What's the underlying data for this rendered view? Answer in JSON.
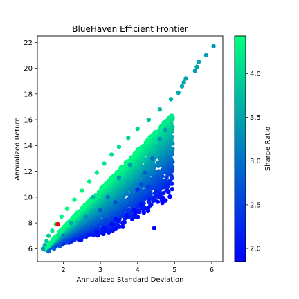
{
  "chart_data": {
    "type": "scatter",
    "title": "BlueHaven Efficient Frontier",
    "xlabel": "Annualized Standard Deviation",
    "ylabel": "Annualized Return",
    "xlim": [
      1.3,
      6.3
    ],
    "ylim": [
      5.0,
      22.5
    ],
    "xticks": [
      2,
      3,
      4,
      5,
      6
    ],
    "yticks": [
      6,
      8,
      10,
      12,
      14,
      16,
      18,
      20,
      22
    ],
    "grid": false,
    "colorbar": {
      "label": "Sharpe Ratio",
      "range": [
        1.85,
        4.43
      ],
      "ticks": [
        2.0,
        2.5,
        3.0,
        3.5,
        4.0
      ],
      "tick_labels": [
        "2.0",
        "2.5",
        "3.0",
        "3.5",
        "4.0"
      ],
      "colormap": "winter",
      "color_low": "#0000ff",
      "color_high": "#00ff80"
    },
    "marker_color_note_free": true,
    "highlight": {
      "x": 1.85,
      "y": 7.9,
      "color": "#ff0000"
    },
    "series": [
      {
        "points": [
          {
            "x": 1.45,
            "y": 6.0,
            "s": 3.4
          },
          {
            "x": 1.5,
            "y": 6.3,
            "s": 3.7
          },
          {
            "x": 1.55,
            "y": 6.6,
            "s": 3.9
          },
          {
            "x": 1.6,
            "y": 7.0,
            "s": 4.0
          },
          {
            "x": 1.7,
            "y": 7.4,
            "s": 4.2
          },
          {
            "x": 1.8,
            "y": 7.9,
            "s": 4.3
          },
          {
            "x": 1.95,
            "y": 8.5,
            "s": 4.35
          },
          {
            "x": 2.1,
            "y": 9.1,
            "s": 4.4
          },
          {
            "x": 2.3,
            "y": 9.8,
            "s": 4.4
          },
          {
            "x": 2.5,
            "y": 10.5,
            "s": 4.35
          },
          {
            "x": 2.7,
            "y": 11.2,
            "s": 4.3
          },
          {
            "x": 2.9,
            "y": 11.9,
            "s": 4.25
          },
          {
            "x": 3.1,
            "y": 12.6,
            "s": 4.2
          },
          {
            "x": 3.3,
            "y": 13.3,
            "s": 4.15
          },
          {
            "x": 3.5,
            "y": 13.9,
            "s": 4.1
          },
          {
            "x": 3.75,
            "y": 14.6,
            "s": 4.0
          },
          {
            "x": 4.0,
            "y": 15.3,
            "s": 3.95
          },
          {
            "x": 4.3,
            "y": 16.0,
            "s": 3.85
          },
          {
            "x": 4.6,
            "y": 16.8,
            "s": 3.75
          },
          {
            "x": 4.9,
            "y": 17.6,
            "s": 3.65
          },
          {
            "x": 5.2,
            "y": 18.6,
            "s": 3.55
          },
          {
            "x": 5.3,
            "y": 19.2,
            "s": 3.5
          },
          {
            "x": 5.25,
            "y": 18.9,
            "s": 3.5
          },
          {
            "x": 5.1,
            "y": 18.1,
            "s": 3.55
          },
          {
            "x": 5.6,
            "y": 20.1,
            "s": 3.5
          },
          {
            "x": 5.65,
            "y": 20.5,
            "s": 3.5
          },
          {
            "x": 5.55,
            "y": 19.8,
            "s": 3.45
          },
          {
            "x": 5.85,
            "y": 21.0,
            "s": 3.45
          },
          {
            "x": 6.05,
            "y": 21.7,
            "s": 3.4
          },
          {
            "x": 1.6,
            "y": 5.8,
            "s": 3.0
          },
          {
            "x": 1.75,
            "y": 6.0,
            "s": 2.8
          },
          {
            "x": 1.9,
            "y": 6.2,
            "s": 2.7
          },
          {
            "x": 2.1,
            "y": 6.5,
            "s": 2.5
          },
          {
            "x": 2.3,
            "y": 6.7,
            "s": 2.3
          },
          {
            "x": 2.5,
            "y": 6.9,
            "s": 2.2
          },
          {
            "x": 2.7,
            "y": 7.1,
            "s": 2.1
          },
          {
            "x": 2.9,
            "y": 7.3,
            "s": 2.0
          },
          {
            "x": 3.1,
            "y": 7.6,
            "s": 2.0
          },
          {
            "x": 3.3,
            "y": 7.9,
            "s": 1.95
          },
          {
            "x": 3.5,
            "y": 8.2,
            "s": 1.95
          },
          {
            "x": 3.7,
            "y": 8.6,
            "s": 1.95
          },
          {
            "x": 3.9,
            "y": 9.0,
            "s": 1.95
          },
          {
            "x": 4.1,
            "y": 9.4,
            "s": 2.0
          },
          {
            "x": 4.3,
            "y": 9.8,
            "s": 2.1
          },
          {
            "x": 4.5,
            "y": 10.4,
            "s": 2.2
          },
          {
            "x": 4.3,
            "y": 10.8,
            "s": 2.4
          },
          {
            "x": 4.1,
            "y": 11.0,
            "s": 2.6
          },
          {
            "x": 4.45,
            "y": 7.6,
            "s": 1.9
          },
          {
            "x": 3.95,
            "y": 8.8,
            "s": 1.9
          },
          {
            "x": 3.6,
            "y": 7.7,
            "s": 1.9
          },
          {
            "x": 3.4,
            "y": 8.3,
            "s": 1.95
          },
          {
            "x": 4.2,
            "y": 11.9,
            "s": 2.8
          },
          {
            "x": 4.0,
            "y": 10.6,
            "s": 2.3
          },
          {
            "x": 4.6,
            "y": 14.5,
            "s": 3.3
          },
          {
            "x": 4.4,
            "y": 13.0,
            "s": 3.0
          },
          {
            "x": 4.75,
            "y": 15.2,
            "s": 3.4
          },
          {
            "x": 3.0,
            "y": 9.0,
            "s": 2.8
          },
          {
            "x": 3.2,
            "y": 10.0,
            "s": 3.0
          },
          {
            "x": 3.5,
            "y": 11.5,
            "s": 3.3
          },
          {
            "x": 2.6,
            "y": 8.5,
            "s": 3.2
          },
          {
            "x": 2.2,
            "y": 8.0,
            "s": 3.5
          },
          {
            "x": 3.8,
            "y": 12.5,
            "s": 3.4
          },
          {
            "x": 3.4,
            "y": 9.6,
            "s": 2.6
          },
          {
            "x": 2.0,
            "y": 7.0,
            "s": 3.2
          },
          {
            "x": 2.8,
            "y": 10.0,
            "s": 3.7
          }
        ]
      }
    ]
  }
}
